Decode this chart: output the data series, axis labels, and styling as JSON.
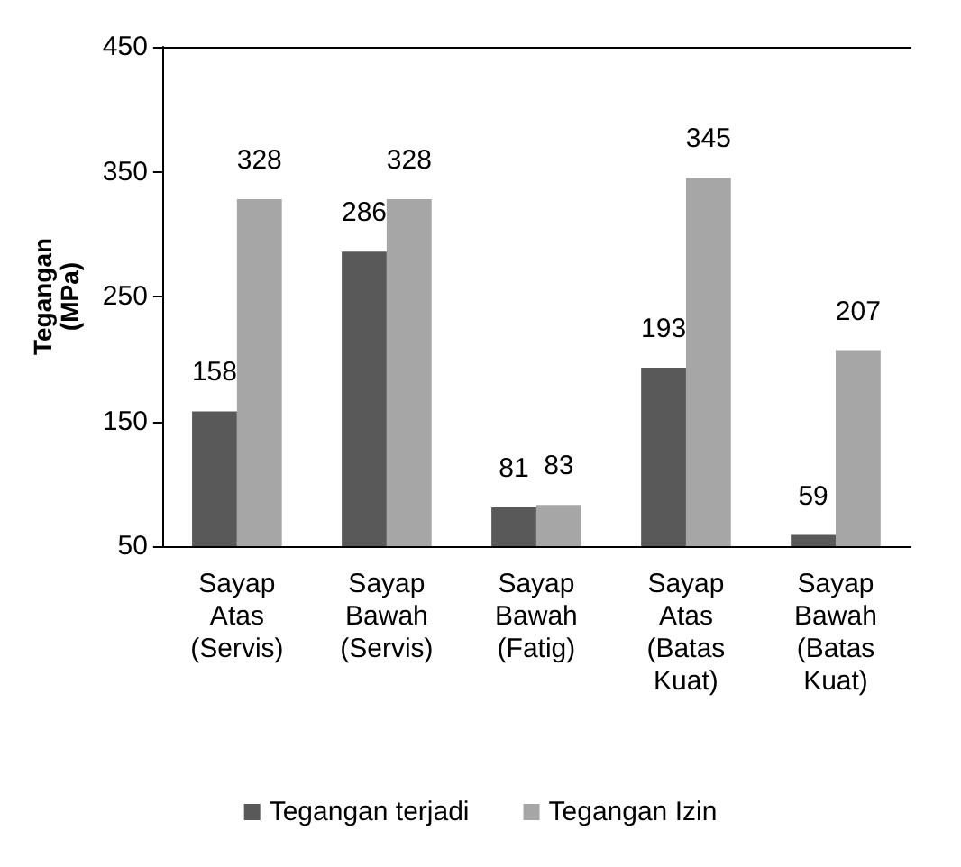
{
  "chart_data": {
    "type": "bar",
    "ylabel": "Tegangan (MPa)",
    "categories": [
      "Sayap Atas (Servis)",
      "Sayap Bawah (Servis)",
      "Sayap Bawah (Fatig)",
      "Sayap Atas (Batas Kuat)",
      "Sayap Bawah (Batas Kuat)"
    ],
    "series": [
      {
        "name": "Tegangan terjadi",
        "color": "#595959",
        "values": [
          158,
          286,
          81,
          193,
          59
        ]
      },
      {
        "name": "Tegangan Izin",
        "color": "#a6a6a6",
        "values": [
          328,
          328,
          83,
          345,
          207
        ]
      }
    ],
    "ylim": [
      50,
      450
    ],
    "yticks": [
      50,
      150,
      250,
      350,
      450
    ],
    "grid": false,
    "legend": "bottom",
    "data_labels": true
  }
}
